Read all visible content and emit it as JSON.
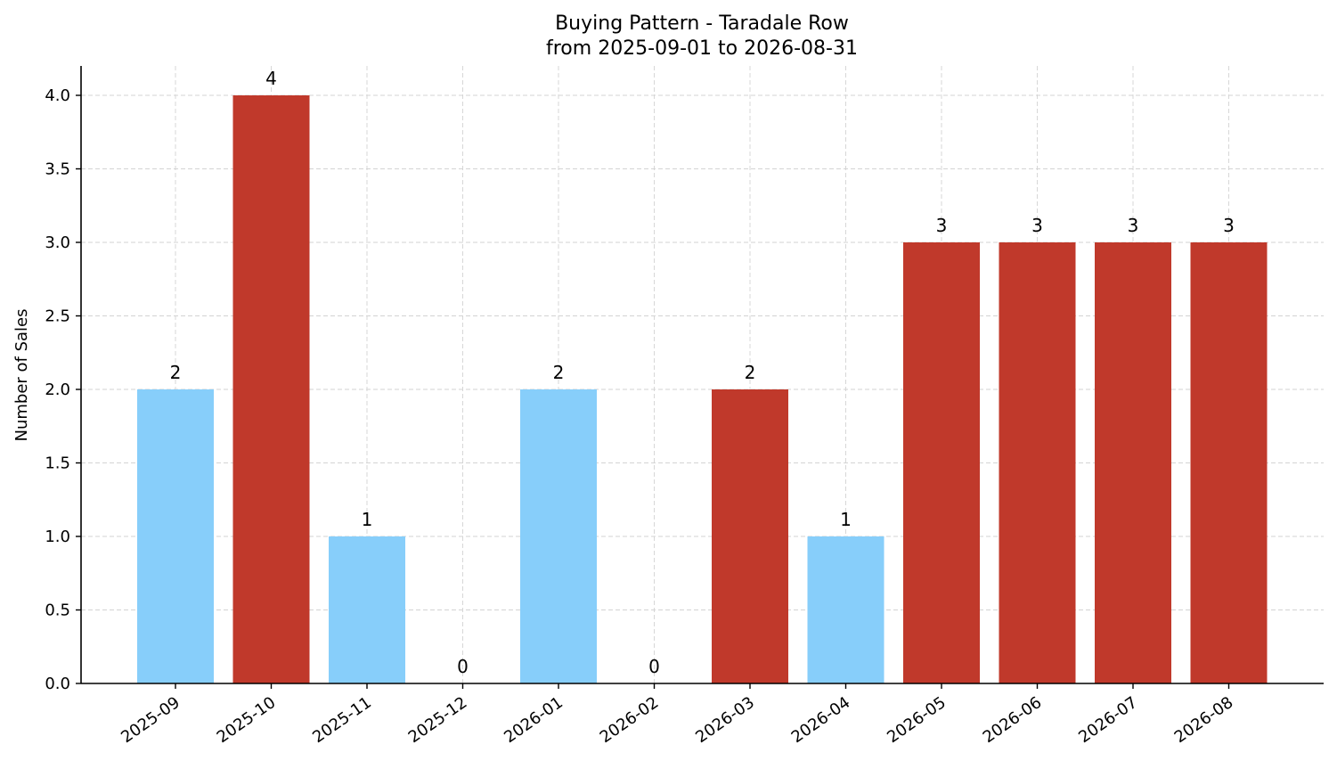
{
  "chart_data": {
    "type": "bar",
    "title": "Buying Pattern - Taradale Row",
    "subtitle": "from 2025-09-01 to 2026-08-31",
    "xlabel": "",
    "ylabel": "Number of Sales",
    "ylim": [
      0,
      4.2
    ],
    "yticks": [
      "0.0",
      "0.5",
      "1.0",
      "1.5",
      "2.0",
      "2.5",
      "3.0",
      "3.5",
      "4.0"
    ],
    "grid": true,
    "categories": [
      "2025-09",
      "2025-10",
      "2025-11",
      "2025-12",
      "2026-01",
      "2026-02",
      "2026-03",
      "2026-04",
      "2026-05",
      "2026-06",
      "2026-07",
      "2026-08"
    ],
    "values": [
      2,
      4,
      1,
      0,
      2,
      0,
      2,
      1,
      3,
      3,
      3,
      3
    ],
    "bar_colors": [
      "#87CEFA",
      "#C0392B",
      "#87CEFA",
      "#87CEFA",
      "#87CEFA",
      "#87CEFA",
      "#C0392B",
      "#87CEFA",
      "#C0392B",
      "#C0392B",
      "#C0392B",
      "#C0392B"
    ]
  }
}
